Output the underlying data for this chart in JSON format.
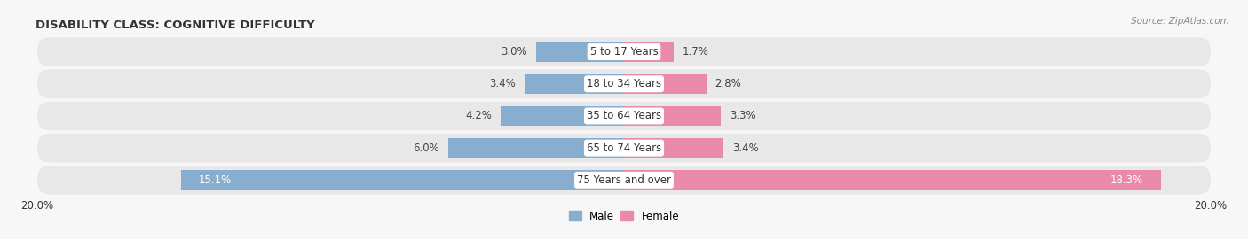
{
  "title": "DISABILITY CLASS: COGNITIVE DIFFICULTY",
  "source": "Source: ZipAtlas.com",
  "categories": [
    "5 to 17 Years",
    "18 to 34 Years",
    "35 to 64 Years",
    "65 to 74 Years",
    "75 Years and over"
  ],
  "male_values": [
    3.0,
    3.4,
    4.2,
    6.0,
    15.1
  ],
  "female_values": [
    1.7,
    2.8,
    3.3,
    3.4,
    18.3
  ],
  "male_color": "#88aecf",
  "female_color": "#e989ab",
  "row_bg_color": "#e8e8e8",
  "fig_bg_color": "#f7f7f7",
  "max_value": 20.0,
  "bar_height": 0.62,
  "title_fontsize": 9.5,
  "label_fontsize": 8.5,
  "axis_label_fontsize": 8.5,
  "male_label": "Male",
  "female_label": "Female"
}
